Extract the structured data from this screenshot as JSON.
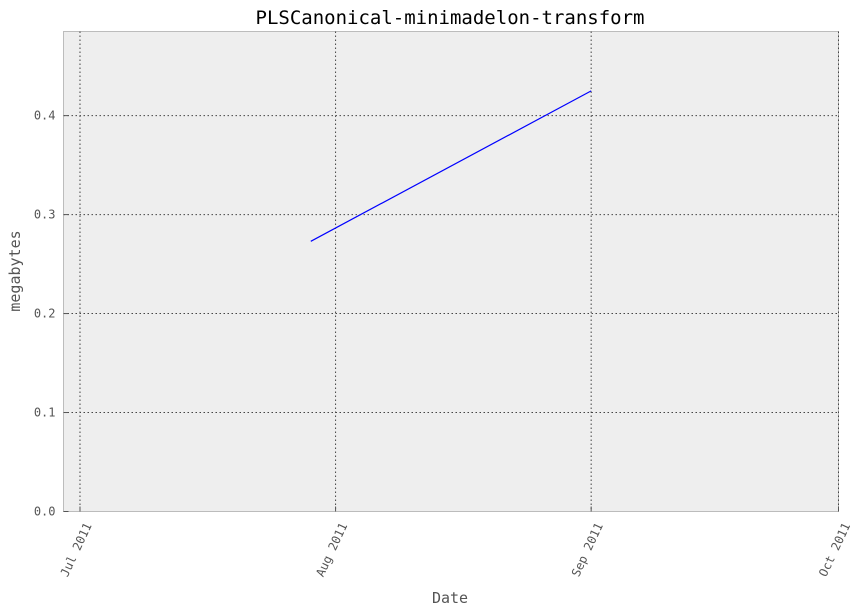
{
  "chart_data": {
    "type": "line",
    "title": "PLSCanonical-minimadelon-transform",
    "xlabel": "Date",
    "ylabel": "megabytes",
    "xlim": [
      "2011-06-29",
      "2011-10-01"
    ],
    "ylim": [
      0,
      0.485
    ],
    "grid": true,
    "x_ticks": [
      {
        "date": "2011-07-01",
        "label": "Jul 2011"
      },
      {
        "date": "2011-08-01",
        "label": "Aug 2011"
      },
      {
        "date": "2011-09-01",
        "label": "Sep 2011"
      },
      {
        "date": "2011-10-01",
        "label": "Oct 2011"
      }
    ],
    "y_ticks": [
      {
        "value": 0.0,
        "label": "0.0"
      },
      {
        "value": 0.1,
        "label": "0.1"
      },
      {
        "value": 0.2,
        "label": "0.2"
      },
      {
        "value": 0.3,
        "label": "0.3"
      },
      {
        "value": 0.4,
        "label": "0.4"
      }
    ],
    "series": [
      {
        "color": "#0000ff",
        "points": [
          {
            "x": "2011-07-29",
            "y": 0.273
          },
          {
            "x": "2011-09-01",
            "y": 0.425
          }
        ]
      }
    ]
  }
}
